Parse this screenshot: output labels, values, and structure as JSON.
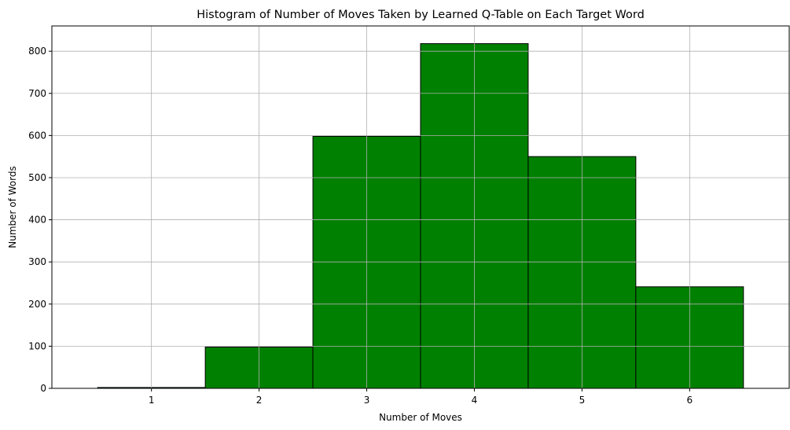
{
  "chart_data": {
    "type": "bar",
    "title": "Histogram of Number of Moves Taken by Learned Q-Table on Each Target Word",
    "xlabel": "Number of Moves",
    "ylabel": "Number of Words",
    "categories": [
      "1",
      "2",
      "3",
      "4",
      "5",
      "6"
    ],
    "x": [
      1,
      2,
      3,
      4,
      5,
      6
    ],
    "values": [
      2,
      98,
      598,
      818,
      550,
      241
    ],
    "xlim": [
      0.075,
      6.925
    ],
    "ylim": [
      0,
      860
    ],
    "yticks": [
      0,
      100,
      200,
      300,
      400,
      500,
      600,
      700,
      800
    ],
    "grid": true,
    "bar_color": "#008000",
    "edge_color": "#000000",
    "grid_color": "#b0b0b0"
  }
}
